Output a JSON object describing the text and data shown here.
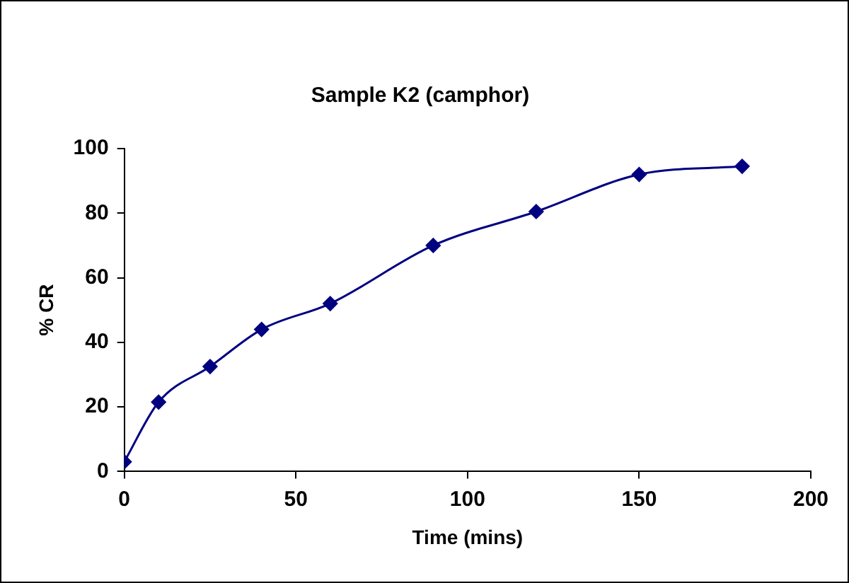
{
  "chart_data": {
    "type": "line",
    "title": "Sample K2 (camphor)",
    "xlabel": "Time (mins)",
    "ylabel": "% CR",
    "x": [
      0,
      10,
      25,
      40,
      60,
      90,
      120,
      150,
      180
    ],
    "series": [
      {
        "color": "#000080",
        "values": [
          3,
          21.5,
          32.5,
          44,
          52,
          70,
          80.5,
          92,
          94.5
        ]
      }
    ],
    "xlim": [
      0,
      200
    ],
    "xticks": [
      0,
      50,
      100,
      150,
      200
    ],
    "ylim": [
      0,
      100
    ],
    "yticks": [
      0,
      20,
      40,
      60,
      80,
      100
    ],
    "marker": "diamond",
    "line_style": "solid",
    "legend": false,
    "grid": false
  }
}
